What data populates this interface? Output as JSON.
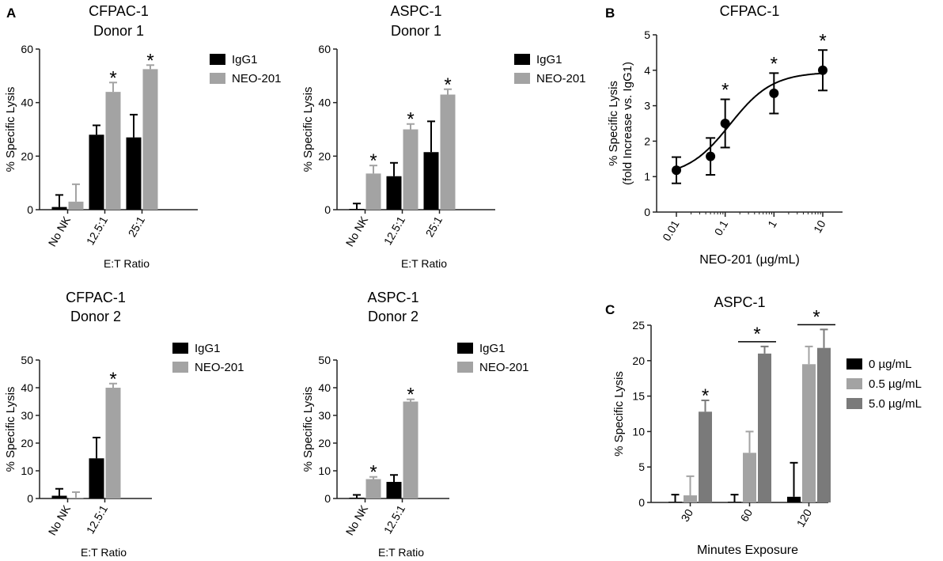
{
  "panel_labels": [
    "A",
    "B",
    "C"
  ],
  "colors": {
    "black": "#000000",
    "gray": "#a3a3a3",
    "dark_gray": "#7a7a7a",
    "axis": "#222222"
  },
  "chart_data": [
    {
      "id": "cfpac-d1",
      "type": "bar",
      "title": [
        "CFPAC-1",
        "Donor 1"
      ],
      "xlabel": "E:T Ratio",
      "ylabel": "% Specific Lysis",
      "categories": [
        "No NK",
        "12.5:1",
        "25:1"
      ],
      "ylim": [
        0,
        60
      ],
      "yticks": [
        0,
        20,
        40,
        60
      ],
      "series": [
        {
          "name": "IgG1",
          "color": "#000000",
          "values": [
            1,
            28,
            27
          ],
          "errors": [
            4.5,
            3.5,
            8.5
          ]
        },
        {
          "name": "NEO-201",
          "color": "#a3a3a3",
          "values": [
            3,
            44,
            52.5
          ],
          "errors": [
            6.5,
            3.5,
            1.5
          ]
        }
      ],
      "stars": [
        {
          "series": 1,
          "category": 1,
          "label": "*"
        },
        {
          "series": 1,
          "category": 2,
          "label": "*"
        }
      ]
    },
    {
      "id": "aspc-d1",
      "type": "bar",
      "title": [
        "ASPC-1",
        "Donor 1"
      ],
      "xlabel": "E:T Ratio",
      "ylabel": "% Specific Lysis",
      "categories": [
        "No NK",
        "12.5:1",
        "25:1"
      ],
      "ylim": [
        0,
        60
      ],
      "yticks": [
        0,
        20,
        40,
        60
      ],
      "series": [
        {
          "name": "IgG1",
          "color": "#000000",
          "values": [
            0.3,
            12.5,
            21.5
          ],
          "errors": [
            2,
            5,
            11.5
          ]
        },
        {
          "name": "NEO-201",
          "color": "#a3a3a3",
          "values": [
            13.5,
            30,
            43
          ],
          "errors": [
            3,
            2,
            2
          ]
        }
      ],
      "stars": [
        {
          "series": 1,
          "category": 0,
          "label": "*"
        },
        {
          "series": 1,
          "category": 1,
          "label": "*"
        },
        {
          "series": 1,
          "category": 2,
          "label": "*"
        }
      ]
    },
    {
      "id": "cfpac-d2",
      "type": "bar",
      "title": [
        "CFPAC-1",
        "Donor 2"
      ],
      "xlabel": "E:T Ratio",
      "ylabel": "% Specific Lysis",
      "categories": [
        "No NK",
        "12.5:1"
      ],
      "ylim": [
        0,
        50
      ],
      "yticks": [
        0,
        10,
        20,
        30,
        40,
        50
      ],
      "series": [
        {
          "name": "IgG1",
          "color": "#000000",
          "values": [
            1,
            14.5
          ],
          "errors": [
            2.5,
            7.5
          ]
        },
        {
          "name": "NEO-201",
          "color": "#a3a3a3",
          "values": [
            0.3,
            40
          ],
          "errors": [
            2,
            1.5
          ]
        }
      ],
      "stars": [
        {
          "series": 1,
          "category": 1,
          "label": "*"
        }
      ]
    },
    {
      "id": "aspc-d2",
      "type": "bar",
      "title": [
        "ASPC-1",
        "Donor 2"
      ],
      "xlabel": "E:T Ratio",
      "ylabel": "% Specific Lysis",
      "categories": [
        "No NK",
        "12.5:1"
      ],
      "ylim": [
        0,
        50
      ],
      "yticks": [
        0,
        10,
        20,
        30,
        40,
        50
      ],
      "series": [
        {
          "name": "IgG1",
          "color": "#000000",
          "values": [
            0.3,
            6
          ],
          "errors": [
            1,
            2.5
          ]
        },
        {
          "name": "NEO-201",
          "color": "#a3a3a3",
          "values": [
            7,
            35
          ],
          "errors": [
            0.8,
            0.8
          ]
        }
      ],
      "stars": [
        {
          "series": 1,
          "category": 0,
          "label": "*"
        },
        {
          "series": 1,
          "category": 1,
          "label": "*"
        }
      ]
    },
    {
      "id": "cfpac-dose",
      "type": "scatter",
      "title": [
        "CFPAC-1"
      ],
      "xlabel": "NEO-201 (µg/mL)",
      "ylabel": [
        "% Specific Lysis",
        "(fold Increase vs. IgG1)"
      ],
      "xscale": "log",
      "xlim": [
        0.01,
        10
      ],
      "xticks": [
        "0.01",
        "0.1",
        "1",
        "10"
      ],
      "ylim": [
        0,
        5
      ],
      "yticks": [
        0,
        1,
        2,
        3,
        4,
        5
      ],
      "points": [
        {
          "x": 0.01,
          "y": 1.18,
          "err": 0.37
        },
        {
          "x": 0.05,
          "y": 1.57,
          "err": 0.52
        },
        {
          "x": 0.1,
          "y": 2.5,
          "err": 0.68
        },
        {
          "x": 1,
          "y": 3.35,
          "err": 0.57
        },
        {
          "x": 10,
          "y": 4.0,
          "err": 0.57
        }
      ],
      "fit": {
        "bottom": 1.0,
        "top": 3.95,
        "log_ec50": -0.9,
        "hill": 1.0
      },
      "stars": [
        {
          "point": 2,
          "label": "*"
        },
        {
          "point": 3,
          "label": "*"
        },
        {
          "point": 4,
          "label": "*"
        }
      ]
    },
    {
      "id": "aspc-time",
      "type": "bar",
      "title": [
        "ASPC-1"
      ],
      "xlabel": "Minutes Exposure",
      "ylabel": "% Specific Lysis",
      "categories": [
        "30",
        "60",
        "120"
      ],
      "ylim": [
        0,
        25
      ],
      "yticks": [
        0,
        5,
        10,
        15,
        20,
        25
      ],
      "series": [
        {
          "name": "0 µg/mL",
          "color": "#000000",
          "values": [
            0.1,
            0.1,
            0.8
          ],
          "errors": [
            1,
            1,
            4.8
          ]
        },
        {
          "name": "0.5 µg/mL",
          "color": "#a3a3a3",
          "values": [
            1,
            7,
            19.5
          ],
          "errors": [
            2.7,
            3,
            2.5
          ]
        },
        {
          "name": "5.0 µg/mL",
          "color": "#7a7a7a",
          "values": [
            12.8,
            21,
            21.8
          ],
          "errors": [
            1.6,
            1,
            2.6
          ]
        }
      ],
      "stars": [
        {
          "series": 2,
          "category": 0,
          "label": "*"
        }
      ],
      "brackets": [
        {
          "category": 1,
          "from_series": 1,
          "to_series": 2,
          "label": "*"
        },
        {
          "category": 2,
          "from_series": 1,
          "to_series": 2,
          "label": "*"
        }
      ]
    }
  ]
}
